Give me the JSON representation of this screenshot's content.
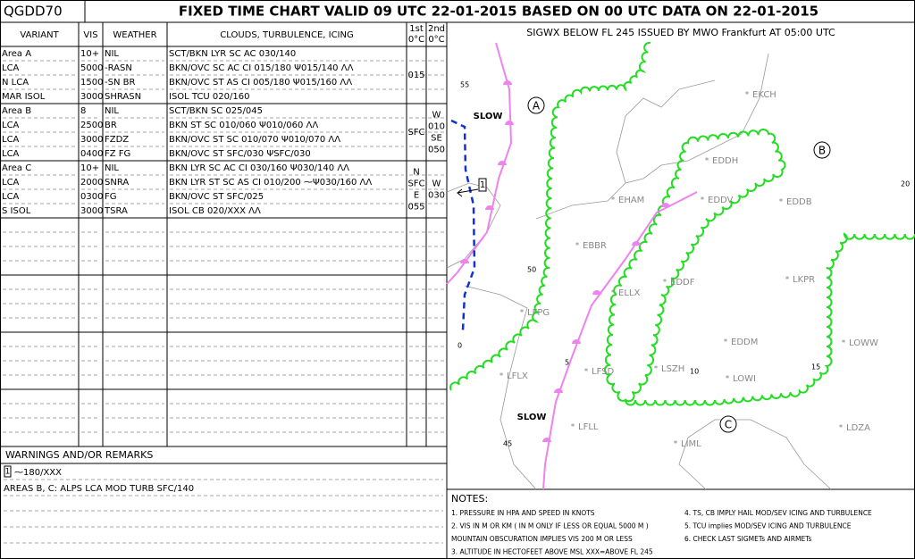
{
  "header": {
    "code": "QGDD70",
    "title": "FIXED TIME CHART VALID 09 UTC 22-01-2015 BASED ON 00 UTC DATA ON 22-01-2015"
  },
  "table": {
    "columns": [
      "VARIANT",
      "VIS",
      "WEATHER",
      "CLOUDS, TURBULENCE, ICING"
    ],
    "freezing_columns": [
      [
        "1st",
        "0°C"
      ],
      [
        "2nd",
        "0°C"
      ]
    ],
    "groups": [
      {
        "rows": [
          [
            "Area A",
            "10+",
            "NIL",
            "SCT/BKN LYR SC AC 030/140"
          ],
          [
            "LCA",
            "5000",
            "-RASN",
            "BKN/OVC SC AC CI 015/180 Ψ015/140 ΛΛ"
          ],
          [
            "N LCA",
            "1500",
            "-SN BR",
            "BKN/OVC ST AS CI 005/180 Ψ015/160 ΛΛ"
          ],
          [
            "MAR ISOL",
            "3000",
            "SHRASN",
            "ISOL TCU 020/160"
          ]
        ],
        "first": [
          "015"
        ],
        "second": []
      },
      {
        "rows": [
          [
            "Area B",
            "8",
            "NIL",
            "SCT/BKN SC 025/045"
          ],
          [
            "LCA",
            "2500",
            "BR",
            "BKN ST SC 010/060 Ψ010/060 ΛΛ"
          ],
          [
            "LCA",
            "3000",
            "FZDZ",
            "BKN/OVC ST SC 010/070 Ψ010/070 ΛΛ"
          ],
          [
            "LCA",
            "0400",
            "FZ FG",
            "BKN/OVC ST SFC/030 ΨSFC/030"
          ]
        ],
        "first": [
          "SFC"
        ],
        "second": [
          "W",
          "010",
          "SE",
          "050"
        ]
      },
      {
        "rows": [
          [
            "Area C",
            "10+",
            "NIL",
            "BKN LYR SC AC CI 030/160 Ψ030/140 ΛΛ"
          ],
          [
            "LCA",
            "2000",
            "SNRA",
            "BKN LYR ST SC AS CI 010/200 ⁓Ψ030/160 ΛΛ"
          ],
          [
            "LCA",
            "0300",
            "FG",
            "BKN/OVC ST SFC/025"
          ],
          [
            "S ISOL",
            "3000",
            "TSRA",
            "ISOL CB 020/XXX ΛΛ"
          ]
        ],
        "first": [
          "N",
          "SFC",
          "E",
          "055"
        ],
        "second": [
          "W",
          "030"
        ]
      }
    ]
  },
  "warnings": {
    "title": "WARNINGS AND/OR REMARKS",
    "marker": "1",
    "items": [
      "⁓180/XXX",
      "AREAS B, C: ALPS LCA MOD TURB SFC/140"
    ]
  },
  "map": {
    "title": "SIGWX BELOW FL 245 ISSUED BY MWO Frankfurt AT 05:00 UTC",
    "regions": [
      "A",
      "B",
      "C"
    ],
    "slow": [
      "SLOW",
      "SLOW"
    ],
    "marker": "1",
    "airports": [
      "EKCH",
      "EDDH",
      "EHAM",
      "EDDV",
      "EDDB",
      "EBBR",
      "EDDF",
      "LKPR",
      "ELLX",
      "LFPG",
      "EDDM",
      "LOWW",
      "LSZH",
      "LOWI",
      "LFSD",
      "LFLX",
      "LFLL",
      "LIML",
      "LDZA"
    ],
    "grid_labels": [
      "55",
      "50",
      "45",
      "20",
      "15",
      "10",
      "5",
      "0"
    ]
  },
  "notes": {
    "title": "NOTES:",
    "left": [
      "1. PRESSURE IN HPA AND SPEED IN KNOTS",
      "2. VIS IN M OR KM ( IN M ONLY IF LESS OR EQUAL 5000 M )",
      "MOUNTAIN OBSCURATION IMPLIES VIS 200 M OR LESS",
      "3. ALTITUDE IN HECTOFEET ABOVE MSL XXX=ABOVE FL 245"
    ],
    "right": [
      "4. TS, CB IMPLY HAIL MOD/SEV ICING AND TURBULENCE",
      "5. TCU implies MOD/SEV ICING AND TURBULENCE",
      "6. CHECK LAST SIGMETs AND AIRMETs"
    ]
  }
}
